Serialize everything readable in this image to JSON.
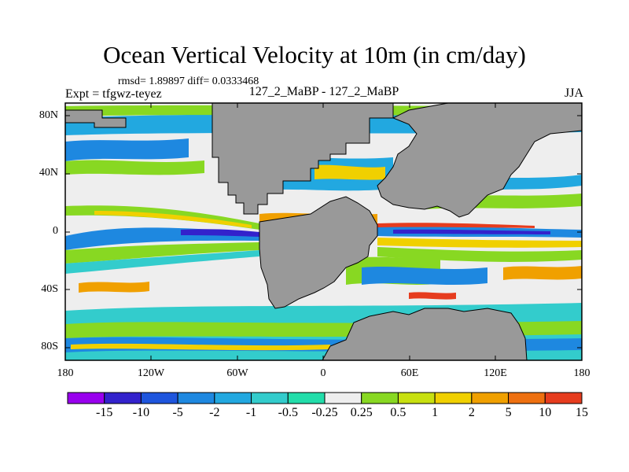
{
  "title": "Ocean Vertical Velocity at 10m (in cm/day)",
  "stats": "rmsd= 1.89897 diff= 0.0333468",
  "expt": "Expt = tfgwz-teyez",
  "runs": "127_2_MaBP - 127_2_MaBP",
  "season": "JJA",
  "lat_ticks": [
    "80N",
    "40N",
    "0",
    "40S",
    "80S"
  ],
  "lon_ticks": [
    "180",
    "120W",
    "60W",
    "0",
    "60E",
    "120E",
    "180"
  ],
  "colorbar": {
    "labels": [
      "-15",
      "-10",
      "-5",
      "-2",
      "-1",
      "-0.5",
      "-0.25",
      "0.25",
      "0.5",
      "1",
      "2",
      "5",
      "10",
      "15"
    ],
    "colors": [
      "#9900ee",
      "#3322cc",
      "#1e55dd",
      "#1e88e0",
      "#22a8e0",
      "#33cccc",
      "#22ddaa",
      "#eeeeee",
      "#88d822",
      "#c8e010",
      "#f0d000",
      "#f0a000",
      "#ee7010",
      "#e63c1e"
    ]
  },
  "land_color": "#999999"
}
